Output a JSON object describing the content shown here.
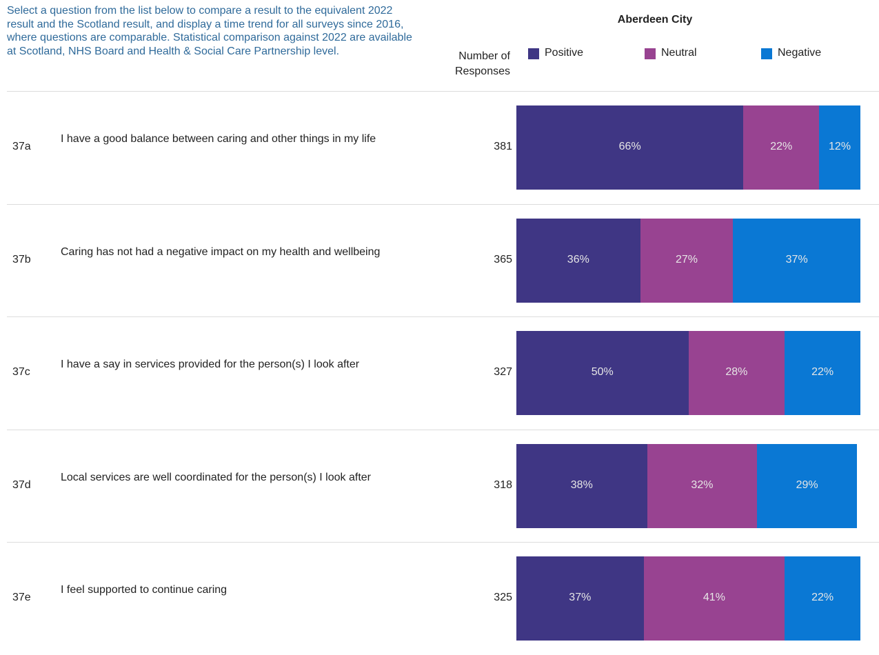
{
  "intro": "Select a question from the list below to compare a result to the equivalent 2022 result and the Scotland result, and display a time trend for all surveys since 2016, where questions are comparable. Statistical comparison against 2022 are available at Scotland, NHS Board and Health & Social Care Partnership level.",
  "responses_header": "Number of Responses",
  "chart_data": {
    "type": "bar",
    "stacked": true,
    "orientation": "horizontal",
    "title": "Aberdeen City",
    "codes": [
      "37a",
      "37b",
      "37c",
      "37d",
      "37e"
    ],
    "categories": [
      "I have a good balance between caring and other things in my life",
      "Caring has not had a negative impact on my health and wellbeing",
      "I have a say in services provided for the person(s) I look after",
      "Local services are well coordinated for the person(s) I look after",
      "I feel supported to continue caring"
    ],
    "responses": [
      381,
      365,
      327,
      318,
      325
    ],
    "xlim": [
      0,
      100
    ],
    "series": [
      {
        "name": "Positive",
        "color": "#3f3684",
        "values": [
          66,
          36,
          50,
          38,
          37
        ],
        "value_labels": [
          "66%",
          "36%",
          "50%",
          "38%",
          "37%"
        ]
      },
      {
        "name": "Neutral",
        "color": "#984391",
        "values": [
          22,
          27,
          28,
          32,
          41
        ],
        "value_labels": [
          "22%",
          "27%",
          "28%",
          "32%",
          "41%"
        ]
      },
      {
        "name": "Negative",
        "color": "#0a78d4",
        "values": [
          12,
          37,
          22,
          29,
          22
        ],
        "value_labels": [
          "12%",
          "37%",
          "22%",
          "29%",
          "22%"
        ]
      }
    ]
  }
}
